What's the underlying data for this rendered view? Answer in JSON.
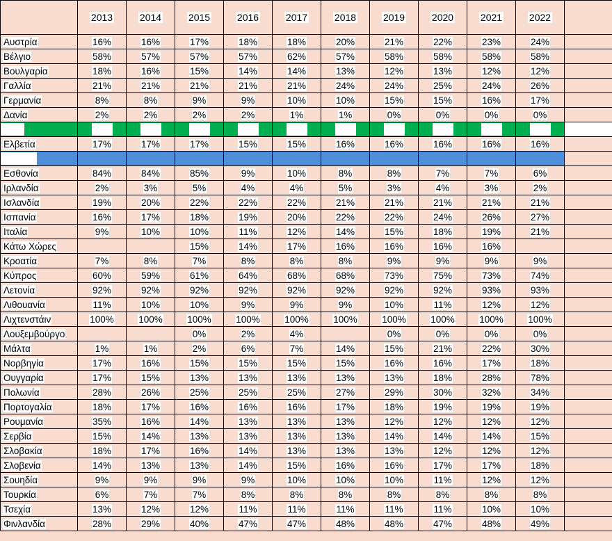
{
  "years": [
    "2013",
    "2014",
    "2015",
    "2016",
    "2017",
    "2018",
    "2019",
    "2020",
    "2021",
    "2022"
  ],
  "rows": [
    {
      "name": "Αυστρία",
      "v": [
        "16%",
        "16%",
        "17%",
        "18%",
        "18%",
        "20%",
        "21%",
        "22%",
        "23%",
        "24%"
      ]
    },
    {
      "name": "Βέλγιο",
      "v": [
        "58%",
        "57%",
        "57%",
        "57%",
        "62%",
        "57%",
        "58%",
        "58%",
        "58%",
        "58%"
      ]
    },
    {
      "name": "Βουλγαρία",
      "v": [
        "18%",
        "16%",
        "15%",
        "14%",
        "14%",
        "13%",
        "12%",
        "13%",
        "12%",
        "12%"
      ]
    },
    {
      "name": "Γαλλία",
      "v": [
        "21%",
        "21%",
        "21%",
        "21%",
        "21%",
        "24%",
        "24%",
        "25%",
        "24%",
        "26%"
      ]
    },
    {
      "name": "Γερμανία",
      "v": [
        "8%",
        "8%",
        "9%",
        "9%",
        "10%",
        "10%",
        "15%",
        "15%",
        "16%",
        "17%"
      ]
    },
    {
      "name": "Δανία",
      "v": [
        "2%",
        "2%",
        "2%",
        "2%",
        "1%",
        "1%",
        "0%",
        "0%",
        "0%",
        "0%"
      ]
    },
    {
      "name": "",
      "v": [
        "",
        "",
        "",
        "",
        "",
        "",
        "",
        "",
        "",
        ""
      ]
    },
    {
      "name": "Ελβετία",
      "v": [
        "17%",
        "17%",
        "17%",
        "15%",
        "15%",
        "16%",
        "16%",
        "16%",
        "16%",
        "16%"
      ]
    },
    {
      "name": "",
      "v": [
        "",
        "",
        "",
        "",
        "",
        "",
        "",
        "",
        "",
        ""
      ]
    },
    {
      "name": "Εσθονία",
      "v": [
        "84%",
        "84%",
        "85%",
        "9%",
        "10%",
        "8%",
        "8%",
        "7%",
        "7%",
        "6%"
      ]
    },
    {
      "name": "Ιρλανδία",
      "v": [
        "2%",
        "3%",
        "5%",
        "4%",
        "4%",
        "5%",
        "3%",
        "4%",
        "3%",
        "2%"
      ]
    },
    {
      "name": "Ισλανδία",
      "v": [
        "19%",
        "20%",
        "22%",
        "22%",
        "22%",
        "21%",
        "21%",
        "21%",
        "21%",
        "21%"
      ]
    },
    {
      "name": "Ισπανία",
      "v": [
        "16%",
        "17%",
        "18%",
        "19%",
        "20%",
        "22%",
        "22%",
        "24%",
        "26%",
        "27%"
      ]
    },
    {
      "name": "Ιταλία",
      "v": [
        "9%",
        "10%",
        "10%",
        "11%",
        "12%",
        "14%",
        "15%",
        "18%",
        "19%",
        "21%"
      ]
    },
    {
      "name": "Κάτω Χώρες",
      "v": [
        "",
        "",
        "15%",
        "14%",
        "17%",
        "16%",
        "16%",
        "16%",
        "16%",
        ""
      ]
    },
    {
      "name": "Κροατία",
      "v": [
        "7%",
        "8%",
        "7%",
        "8%",
        "8%",
        "8%",
        "9%",
        "9%",
        "9%",
        "9%"
      ]
    },
    {
      "name": "Κύπρος",
      "v": [
        "60%",
        "59%",
        "61%",
        "64%",
        "68%",
        "68%",
        "73%",
        "75%",
        "73%",
        "74%"
      ]
    },
    {
      "name": "Λετονία",
      "v": [
        "92%",
        "92%",
        "92%",
        "92%",
        "92%",
        "92%",
        "92%",
        "92%",
        "93%",
        "93%"
      ]
    },
    {
      "name": "Λιθουανία",
      "v": [
        "11%",
        "10%",
        "10%",
        "9%",
        "9%",
        "9%",
        "10%",
        "11%",
        "12%",
        "12%"
      ]
    },
    {
      "name": "Λιχτενστάιν",
      "v": [
        "100%",
        "100%",
        "100%",
        "100%",
        "100%",
        "100%",
        "100%",
        "100%",
        "100%",
        "100%"
      ]
    },
    {
      "name": "Λουξεμβούργο",
      "v": [
        "",
        "",
        "0%",
        "2%",
        "4%",
        "",
        "0%",
        "0%",
        "0%",
        "0%"
      ]
    },
    {
      "name": "Μάλτα",
      "v": [
        "1%",
        "1%",
        "2%",
        "6%",
        "7%",
        "14%",
        "15%",
        "21%",
        "22%",
        "30%"
      ]
    },
    {
      "name": "Νορβηγία",
      "v": [
        "17%",
        "16%",
        "15%",
        "15%",
        "15%",
        "15%",
        "16%",
        "16%",
        "17%",
        "18%"
      ]
    },
    {
      "name": "Ουγγαρία",
      "v": [
        "17%",
        "15%",
        "13%",
        "13%",
        "13%",
        "13%",
        "13%",
        "18%",
        "28%",
        "78%"
      ]
    },
    {
      "name": "Πολωνία",
      "v": [
        "28%",
        "26%",
        "25%",
        "25%",
        "25%",
        "27%",
        "29%",
        "30%",
        "32%",
        "34%"
      ]
    },
    {
      "name": "Πορτογαλία",
      "v": [
        "18%",
        "17%",
        "16%",
        "16%",
        "16%",
        "17%",
        "18%",
        "19%",
        "19%",
        "19%"
      ]
    },
    {
      "name": "Ρουμανία",
      "v": [
        "35%",
        "16%",
        "14%",
        "13%",
        "13%",
        "13%",
        "12%",
        "12%",
        "12%",
        "12%"
      ]
    },
    {
      "name": "Σερβία",
      "v": [
        "15%",
        "14%",
        "13%",
        "13%",
        "13%",
        "13%",
        "14%",
        "14%",
        "14%",
        "15%"
      ]
    },
    {
      "name": "Σλοβακία",
      "v": [
        "18%",
        "17%",
        "16%",
        "14%",
        "13%",
        "13%",
        "13%",
        "12%",
        "12%",
        "12%"
      ]
    },
    {
      "name": "Σλοβενία",
      "v": [
        "14%",
        "13%",
        "13%",
        "14%",
        "15%",
        "16%",
        "16%",
        "17%",
        "17%",
        "18%"
      ]
    },
    {
      "name": "Σουηδία",
      "v": [
        "9%",
        "9%",
        "9%",
        "9%",
        "10%",
        "10%",
        "10%",
        "11%",
        "12%",
        "12%"
      ]
    },
    {
      "name": "Τουρκία",
      "v": [
        "6%",
        "7%",
        "7%",
        "8%",
        "8%",
        "8%",
        "8%",
        "8%",
        "8%",
        "8%"
      ]
    },
    {
      "name": "Τσεχία",
      "v": [
        "13%",
        "12%",
        "12%",
        "11%",
        "11%",
        "11%",
        "11%",
        "11%",
        "10%",
        "10%"
      ]
    },
    {
      "name": "Φινλανδία",
      "v": [
        "28%",
        "29%",
        "40%",
        "47%",
        "47%",
        "48%",
        "48%",
        "47%",
        "48%",
        "49%"
      ]
    }
  ]
}
